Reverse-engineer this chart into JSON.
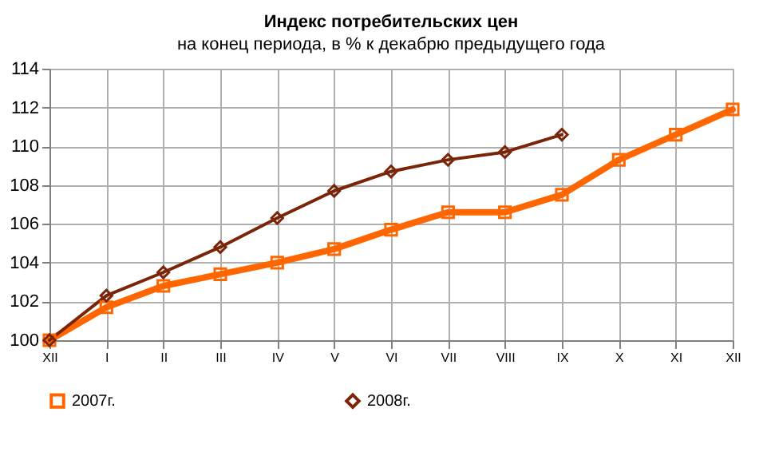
{
  "chart_data": {
    "type": "line",
    "title": "Индекс потребительских цен",
    "subtitle": "на конец периода, в % к декабрю предыдущего года",
    "categories": [
      "XII",
      "I",
      "II",
      "III",
      "IV",
      "V",
      "VI",
      "VII",
      "VIII",
      "IX",
      "X",
      "XI",
      "XII"
    ],
    "series": [
      {
        "name": "2007г.",
        "color": "#ff6600",
        "marker": "square",
        "values": [
          100,
          101.7,
          102.8,
          103.4,
          104.0,
          104.7,
          105.7,
          106.6,
          106.6,
          107.5,
          109.3,
          110.6,
          111.9
        ]
      },
      {
        "name": "2008г.",
        "color": "#7b2508",
        "marker": "diamond",
        "values": [
          100,
          102.3,
          103.5,
          104.8,
          106.3,
          107.7,
          108.7,
          109.3,
          109.7,
          110.6,
          null,
          null,
          null
        ]
      }
    ],
    "ylim": [
      100,
      114
    ],
    "yticks": [
      100,
      102,
      104,
      106,
      108,
      110,
      112,
      114
    ],
    "grid": true,
    "legend": "bottom"
  }
}
